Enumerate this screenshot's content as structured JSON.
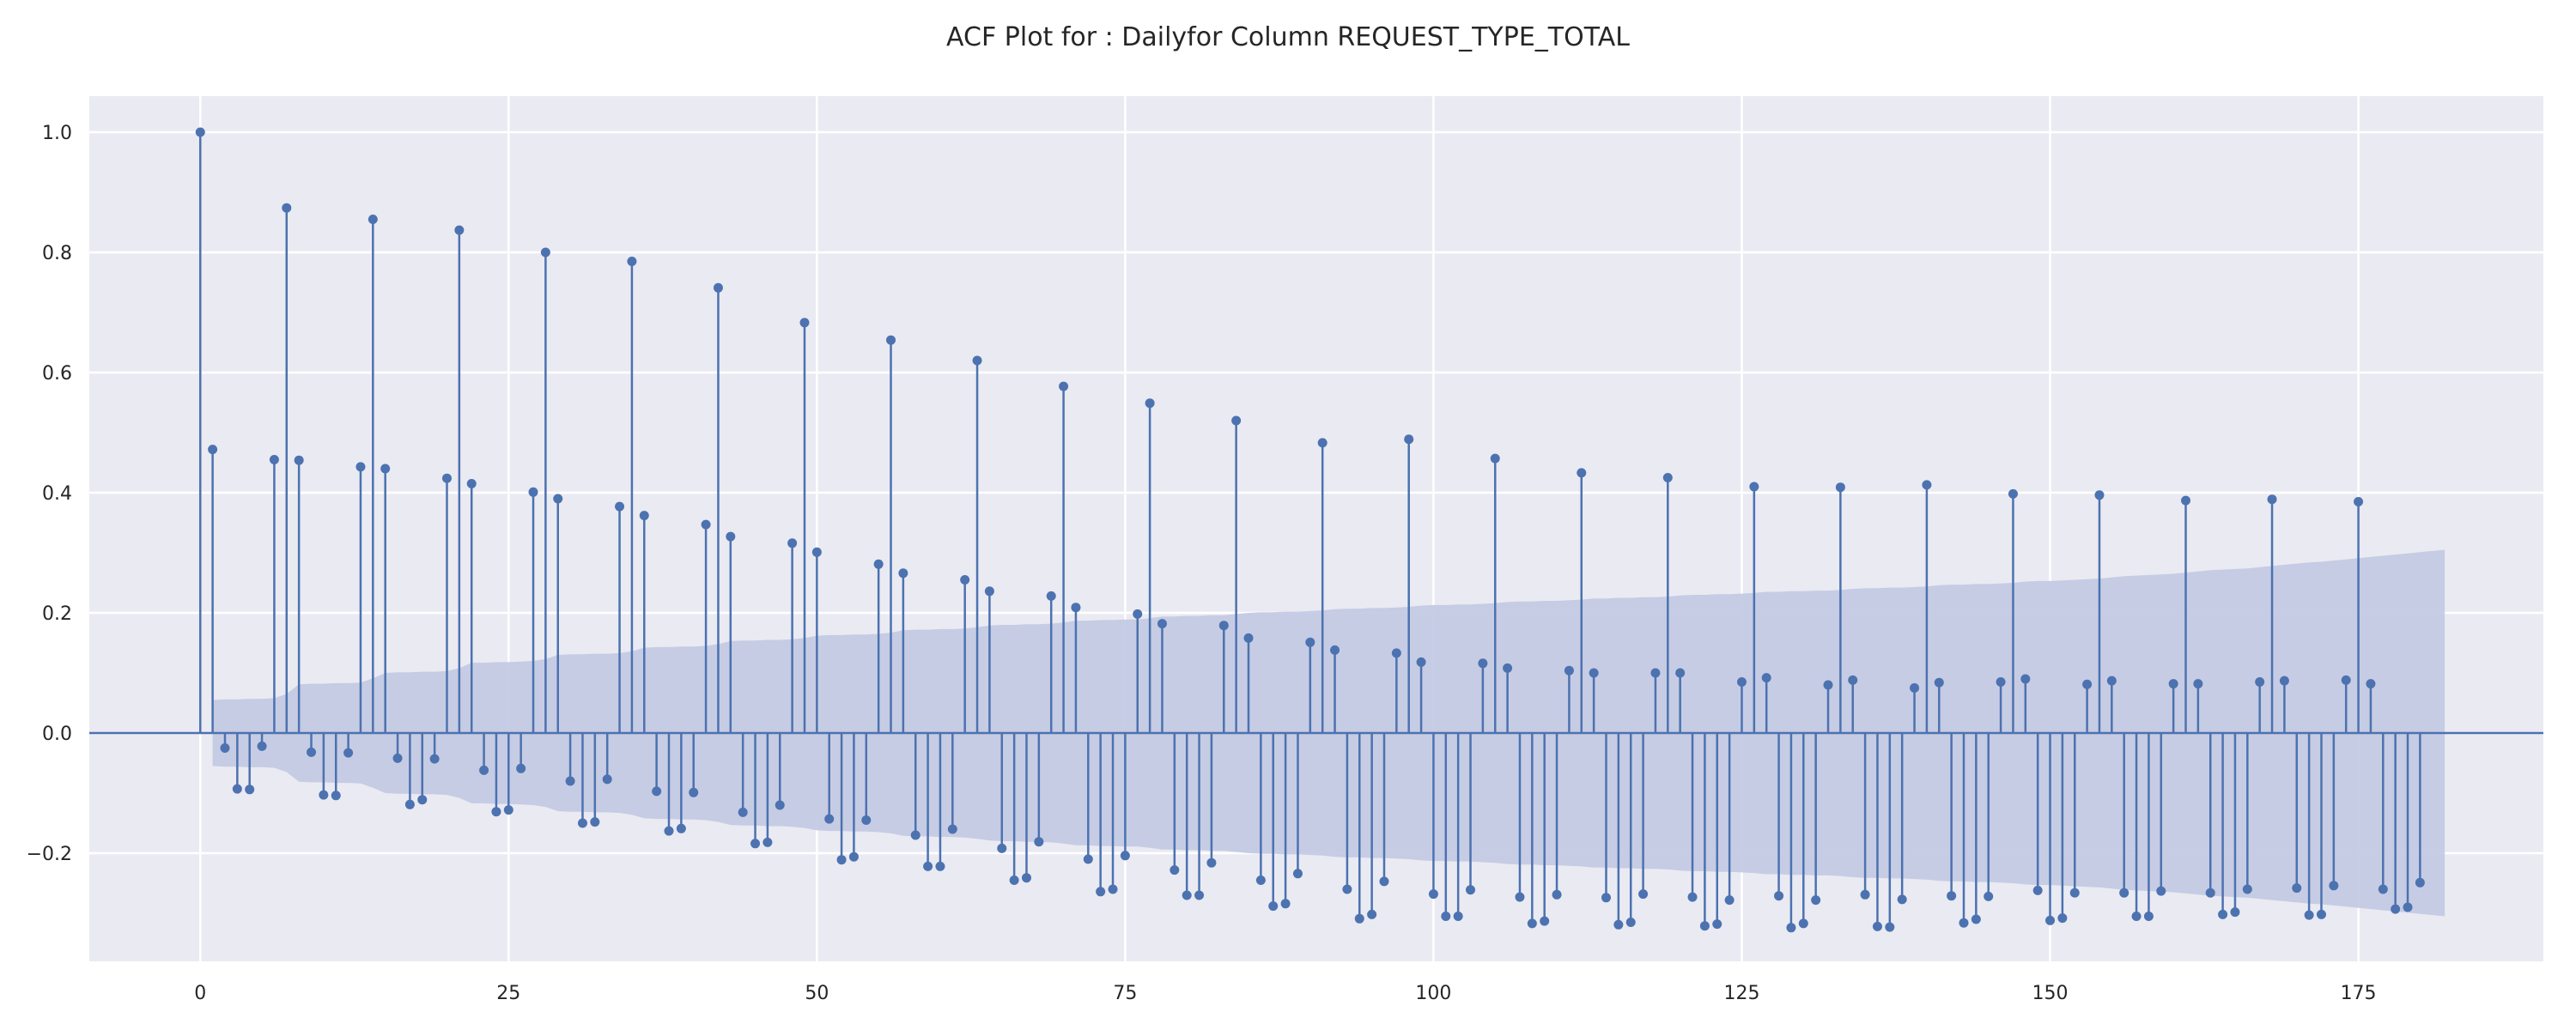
{
  "chart_data": {
    "type": "stem",
    "title": "ACF Plot for : Dailyfor Column REQUEST_TYPE_TOTAL",
    "xlabel": "",
    "ylabel": "",
    "xlim": [
      -9,
      190
    ],
    "ylim": [
      -0.38,
      1.06
    ],
    "xticks": [
      0,
      25,
      50,
      75,
      100,
      125,
      150,
      175
    ],
    "yticks": [
      -0.2,
      0.0,
      0.2,
      0.4,
      0.6,
      0.8,
      1.0
    ],
    "ytick_labels": [
      "−0.2",
      "0.0",
      "0.2",
      "0.4",
      "0.6",
      "0.8",
      "1.0"
    ],
    "grid": true,
    "colors": {
      "background": "#eaeaf2",
      "grid": "#ffffff",
      "stem": "#4c72b0",
      "confidence_band": "#c2c9e3"
    },
    "lags": [
      0,
      180
    ],
    "acf": [
      1.0,
      0.472,
      -0.025,
      -0.093,
      -0.094,
      -0.022,
      0.455,
      0.874,
      0.454,
      -0.032,
      -0.103,
      -0.104,
      -0.033,
      0.443,
      0.855,
      0.44,
      -0.042,
      -0.119,
      -0.111,
      -0.043,
      0.424,
      0.837,
      0.415,
      -0.062,
      -0.131,
      -0.128,
      -0.059,
      0.401,
      0.8,
      0.39,
      -0.08,
      -0.15,
      -0.148,
      -0.077,
      0.377,
      0.785,
      0.362,
      -0.097,
      -0.163,
      -0.159,
      -0.099,
      0.347,
      0.741,
      0.327,
      -0.132,
      -0.184,
      -0.182,
      -0.12,
      0.316,
      0.683,
      0.301,
      -0.143,
      -0.211,
      -0.206,
      -0.145,
      0.281,
      0.654,
      0.266,
      -0.17,
      -0.222,
      -0.222,
      -0.16,
      0.255,
      0.62,
      0.236,
      -0.192,
      -0.245,
      -0.241,
      -0.181,
      0.228,
      0.577,
      0.209,
      -0.21,
      -0.264,
      -0.26,
      -0.204,
      0.198,
      0.549,
      0.182,
      -0.228,
      -0.27,
      -0.27,
      -0.216,
      0.179,
      0.52,
      0.158,
      -0.245,
      -0.288,
      -0.284,
      -0.234,
      0.151,
      0.483,
      0.138,
      -0.26,
      -0.309,
      -0.302,
      -0.247,
      0.133,
      0.489,
      0.118,
      -0.268,
      -0.305,
      -0.305,
      -0.261,
      0.116,
      0.457,
      0.108,
      -0.273,
      -0.317,
      -0.313,
      -0.269,
      0.104,
      0.433,
      0.1,
      -0.274,
      -0.319,
      -0.315,
      -0.268,
      0.1,
      0.425,
      0.1,
      -0.273,
      -0.321,
      -0.318,
      -0.278,
      0.085,
      0.41,
      0.092,
      -0.271,
      -0.324,
      -0.317,
      -0.278,
      0.08,
      0.409,
      0.088,
      -0.269,
      -0.322,
      -0.323,
      -0.277,
      0.075,
      0.413,
      0.084,
      -0.271,
      -0.316,
      -0.31,
      -0.272,
      0.085,
      0.398,
      0.09,
      -0.262,
      -0.312,
      -0.308,
      -0.266,
      0.081,
      0.396,
      0.087,
      -0.266,
      -0.305,
      -0.305,
      -0.263,
      0.082,
      0.387,
      0.082,
      -0.266,
      -0.302,
      -0.298,
      -0.26,
      0.085,
      0.389,
      0.087,
      -0.258,
      -0.303,
      -0.302,
      -0.254,
      0.088,
      0.385,
      0.082,
      -0.26,
      -0.293,
      -0.29,
      -0.249
    ],
    "confidence_interval": [
      0.0,
      0.055,
      0.056,
      0.056,
      0.057,
      0.057,
      0.058,
      0.065,
      0.081,
      0.082,
      0.082,
      0.083,
      0.083,
      0.084,
      0.091,
      0.1,
      0.101,
      0.101,
      0.102,
      0.102,
      0.103,
      0.108,
      0.117,
      0.117,
      0.118,
      0.118,
      0.119,
      0.12,
      0.123,
      0.13,
      0.131,
      0.131,
      0.132,
      0.132,
      0.133,
      0.136,
      0.142,
      0.143,
      0.143,
      0.144,
      0.144,
      0.145,
      0.148,
      0.153,
      0.154,
      0.154,
      0.155,
      0.155,
      0.156,
      0.158,
      0.162,
      0.163,
      0.163,
      0.164,
      0.164,
      0.165,
      0.167,
      0.171,
      0.172,
      0.172,
      0.173,
      0.173,
      0.174,
      0.176,
      0.179,
      0.18,
      0.18,
      0.181,
      0.181,
      0.182,
      0.184,
      0.187,
      0.187,
      0.188,
      0.188,
      0.189,
      0.189,
      0.191,
      0.194,
      0.194,
      0.195,
      0.195,
      0.196,
      0.196,
      0.198,
      0.2,
      0.201,
      0.201,
      0.202,
      0.202,
      0.203,
      0.204,
      0.206,
      0.207,
      0.207,
      0.208,
      0.208,
      0.209,
      0.21,
      0.212,
      0.213,
      0.213,
      0.214,
      0.214,
      0.215,
      0.216,
      0.218,
      0.219,
      0.219,
      0.22,
      0.22,
      0.221,
      0.222,
      0.224,
      0.224,
      0.225,
      0.225,
      0.226,
      0.226,
      0.227,
      0.229,
      0.23,
      0.23,
      0.231,
      0.231,
      0.232,
      0.233,
      0.235,
      0.235,
      0.236,
      0.236,
      0.237,
      0.237,
      0.238,
      0.24,
      0.241,
      0.241,
      0.242,
      0.242,
      0.243,
      0.244,
      0.246,
      0.247,
      0.247,
      0.248,
      0.248,
      0.249,
      0.25,
      0.252,
      0.253,
      0.253,
      0.254,
      0.255,
      0.256,
      0.257,
      0.259,
      0.261,
      0.262,
      0.263,
      0.264,
      0.265,
      0.267,
      0.269,
      0.271,
      0.272,
      0.273,
      0.274,
      0.276,
      0.278,
      0.28,
      0.282,
      0.284,
      0.285,
      0.287,
      0.289,
      0.291,
      0.293,
      0.295,
      0.297,
      0.299,
      0.301,
      0.303,
      0.305
    ]
  }
}
